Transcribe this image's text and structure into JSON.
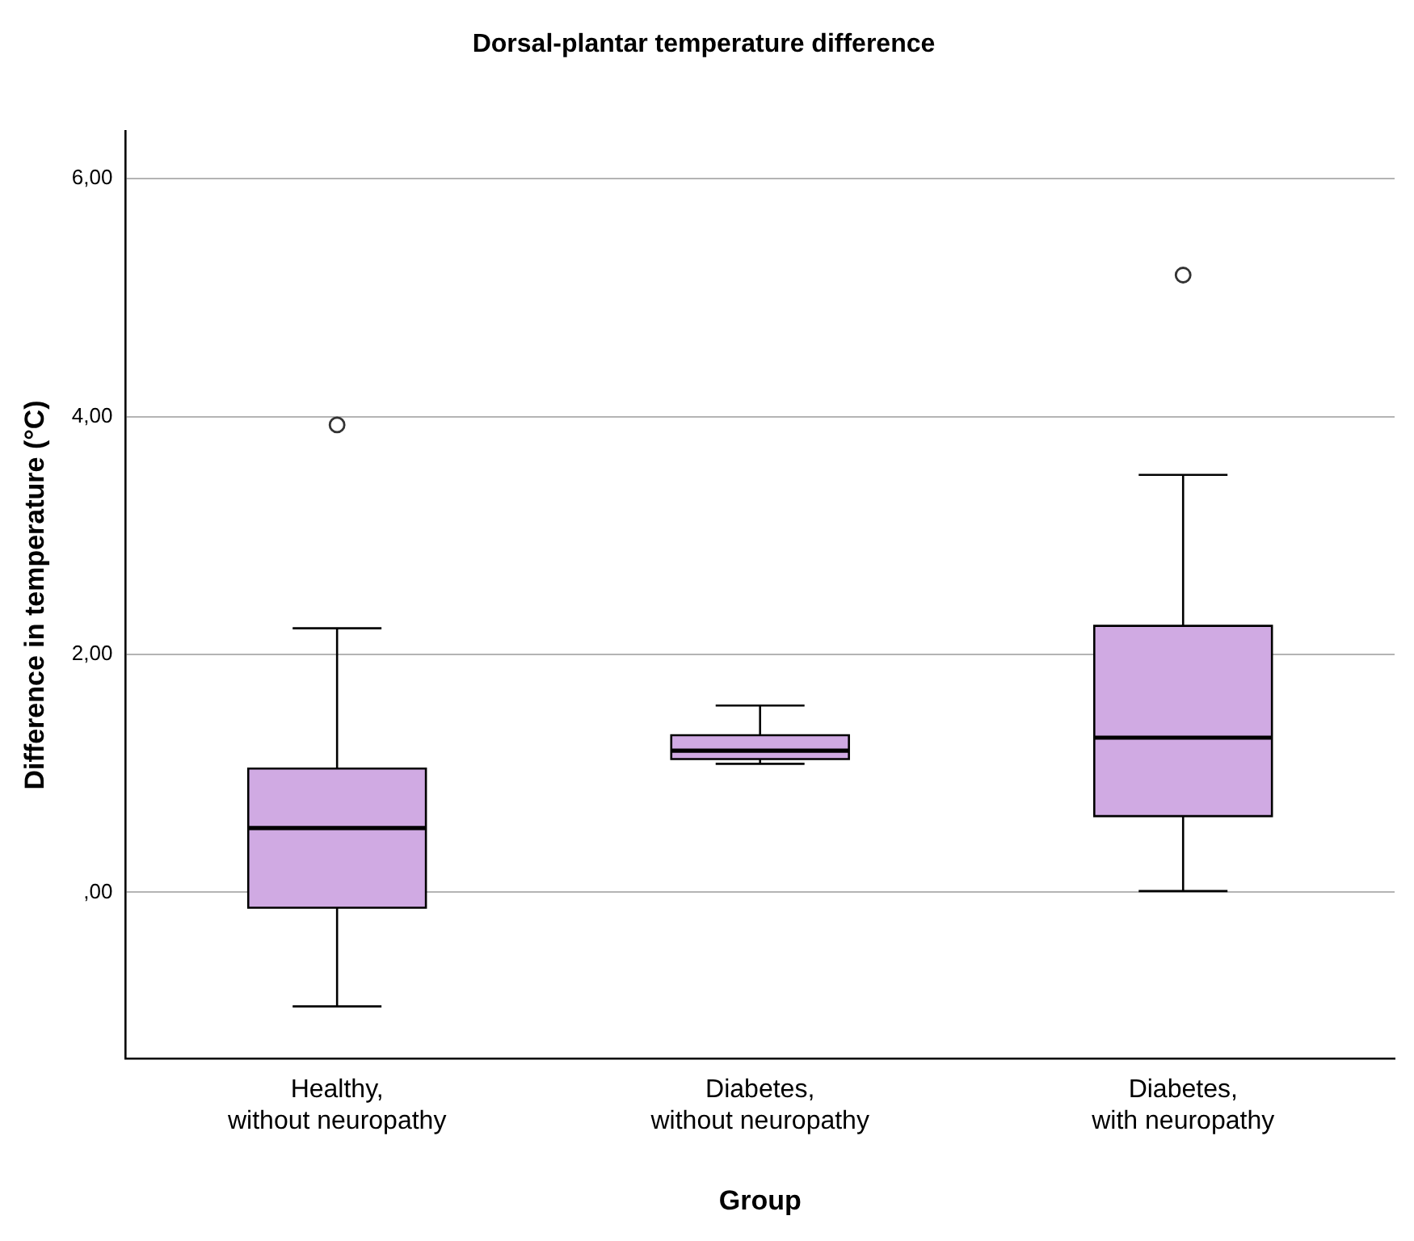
{
  "chart_data": {
    "type": "box",
    "title": "Dorsal-plantar temperature difference",
    "xlabel": "Group",
    "ylabel": "Difference in temperature (°C)",
    "categories": [
      "Healthy, without neuropathy",
      "Diabetes, without neuropathy",
      "Diabetes, with neuropathy"
    ],
    "color": "#d0aae3",
    "boxes": [
      {
        "low": -0.96,
        "q1": -0.13,
        "median": 0.54,
        "q3": 1.04,
        "high": 2.22,
        "outliers": [
          3.93
        ]
      },
      {
        "low": 1.08,
        "q1": 1.12,
        "median": 1.19,
        "q3": 1.32,
        "high": 1.57
      },
      {
        "low": 0.01,
        "q1": 0.64,
        "median": 1.3,
        "q3": 2.24,
        "high": 3.51,
        "outliers": [
          5.19
        ]
      }
    ],
    "ylim": [
      -1.4,
      6.4
    ],
    "yticks": [
      {
        "value": 0,
        "label": ",00"
      },
      {
        "value": 2,
        "label": "2,00"
      },
      {
        "value": 4,
        "label": "4,00"
      },
      {
        "value": 6,
        "label": "6,00"
      }
    ],
    "grid": "y",
    "marker": "circle"
  }
}
